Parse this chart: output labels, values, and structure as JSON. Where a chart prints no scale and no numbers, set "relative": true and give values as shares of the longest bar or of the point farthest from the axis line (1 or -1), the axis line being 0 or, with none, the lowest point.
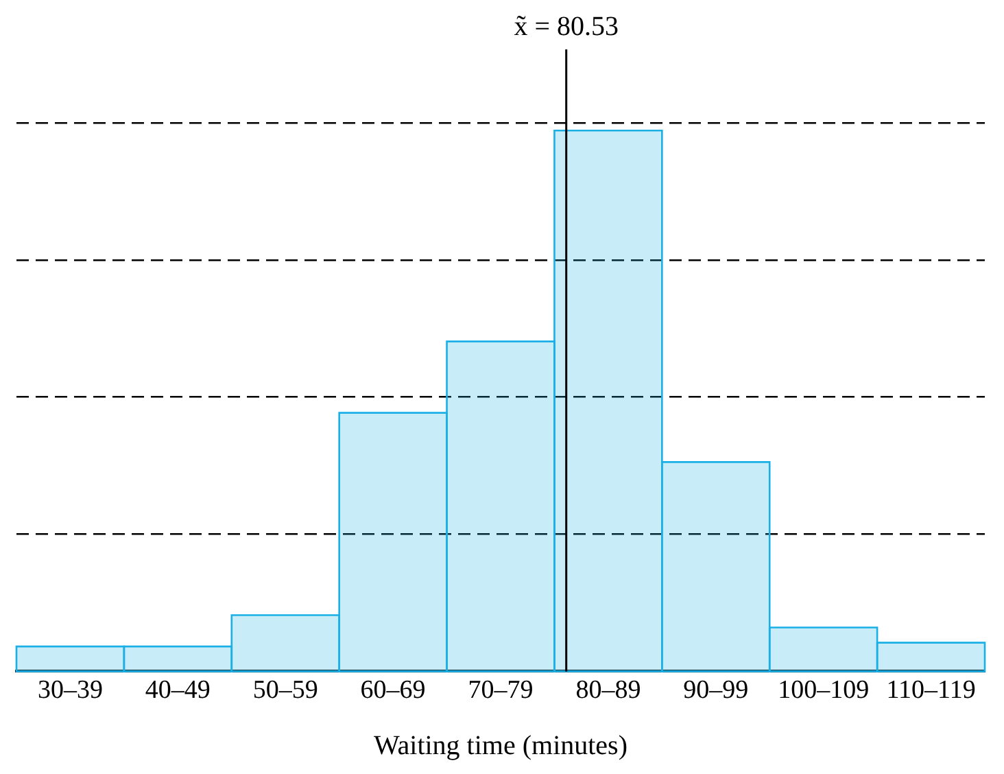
{
  "chart_data": {
    "type": "bar",
    "xlabel": "Waiting time (minutes)",
    "relative": true,
    "categories": [
      "30–39",
      "40–49",
      "50–59",
      "60–69",
      "70–79",
      "80–89",
      "90–99",
      "100–109",
      "110–119"
    ],
    "values": [
      0.046,
      0.046,
      0.104,
      0.478,
      0.61,
      1,
      0.387,
      0.081,
      0.053
    ],
    "color": "#1ab0e6",
    "ref_lines": [
      {
        "axis": "x",
        "value": "80–89",
        "label": "x̃ = 80.53",
        "color": "#000000"
      }
    ],
    "grid": "y"
  }
}
